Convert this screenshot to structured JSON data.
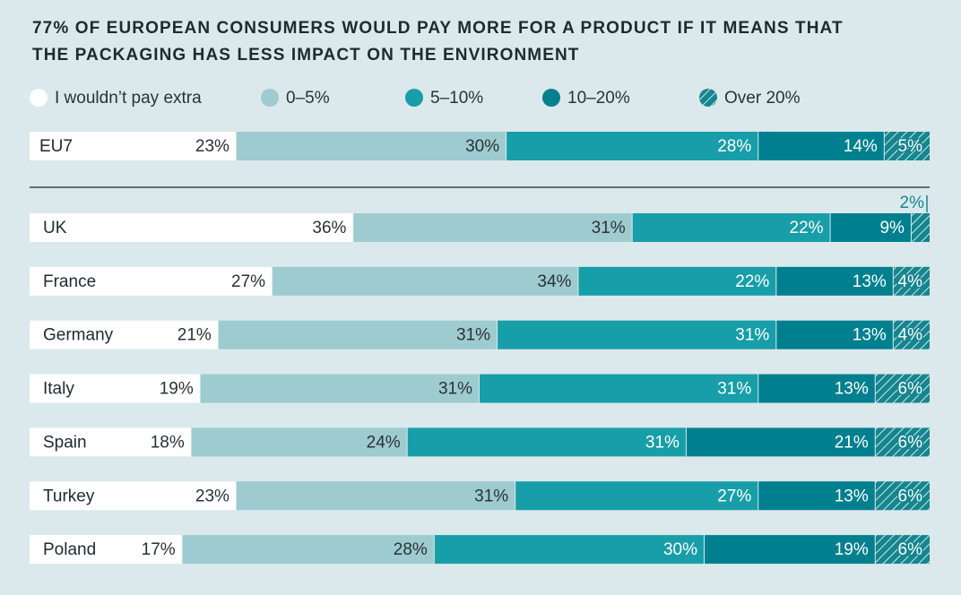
{
  "chart_data": {
    "type": "bar",
    "orientation": "horizontal",
    "stacked": true,
    "title": [
      "77% OF EUROPEAN CONSUMERS WOULD PAY MORE FOR A PRODUCT IF IT MEANS THAT",
      "THE PACKAGING HAS LESS IMPACT ON THE ENVIRONMENT"
    ],
    "categories": [
      "EU7",
      "UK",
      "France",
      "Germany",
      "Italy",
      "Spain",
      "Turkey",
      "Poland"
    ],
    "xlim": [
      0,
      100
    ],
    "series": [
      {
        "name": "I wouldn’t pay extra",
        "color": "#ffffff",
        "values": [
          23,
          36,
          27,
          21,
          19,
          18,
          23,
          17
        ],
        "value_labels": [
          "23%",
          "36%",
          "27%",
          "21%",
          "19%",
          "18%",
          "23%",
          "17%"
        ]
      },
      {
        "name": "0–5%",
        "color": "#9dcbd0",
        "values": [
          30,
          31,
          34,
          31,
          31,
          24,
          31,
          28
        ],
        "value_labels": [
          "30%",
          "31%",
          "34%",
          "31%",
          "31%",
          "24%",
          "31%",
          "28%"
        ]
      },
      {
        "name": "5–10%",
        "color": "#189ea8",
        "values": [
          28,
          22,
          22,
          31,
          31,
          31,
          27,
          30
        ],
        "value_labels": [
          "28%",
          "22%",
          "22%",
          "31%",
          "31%",
          "31%",
          "27%",
          "30%"
        ]
      },
      {
        "name": "10–20%",
        "color": "#00808f",
        "values": [
          14,
          9,
          13,
          13,
          13,
          21,
          13,
          19
        ],
        "value_labels": [
          "14%",
          "9%",
          "13%",
          "13%",
          "13%",
          "21%",
          "13%",
          "19%"
        ]
      },
      {
        "name": "Over 20%",
        "color": "#15858f",
        "hatch": true,
        "values": [
          5,
          2,
          4,
          4,
          6,
          6,
          6,
          6
        ],
        "value_labels": [
          "5%",
          "2%",
          "4%",
          "4%",
          "6%",
          "6%",
          "6%",
          "6%"
        ]
      }
    ]
  }
}
